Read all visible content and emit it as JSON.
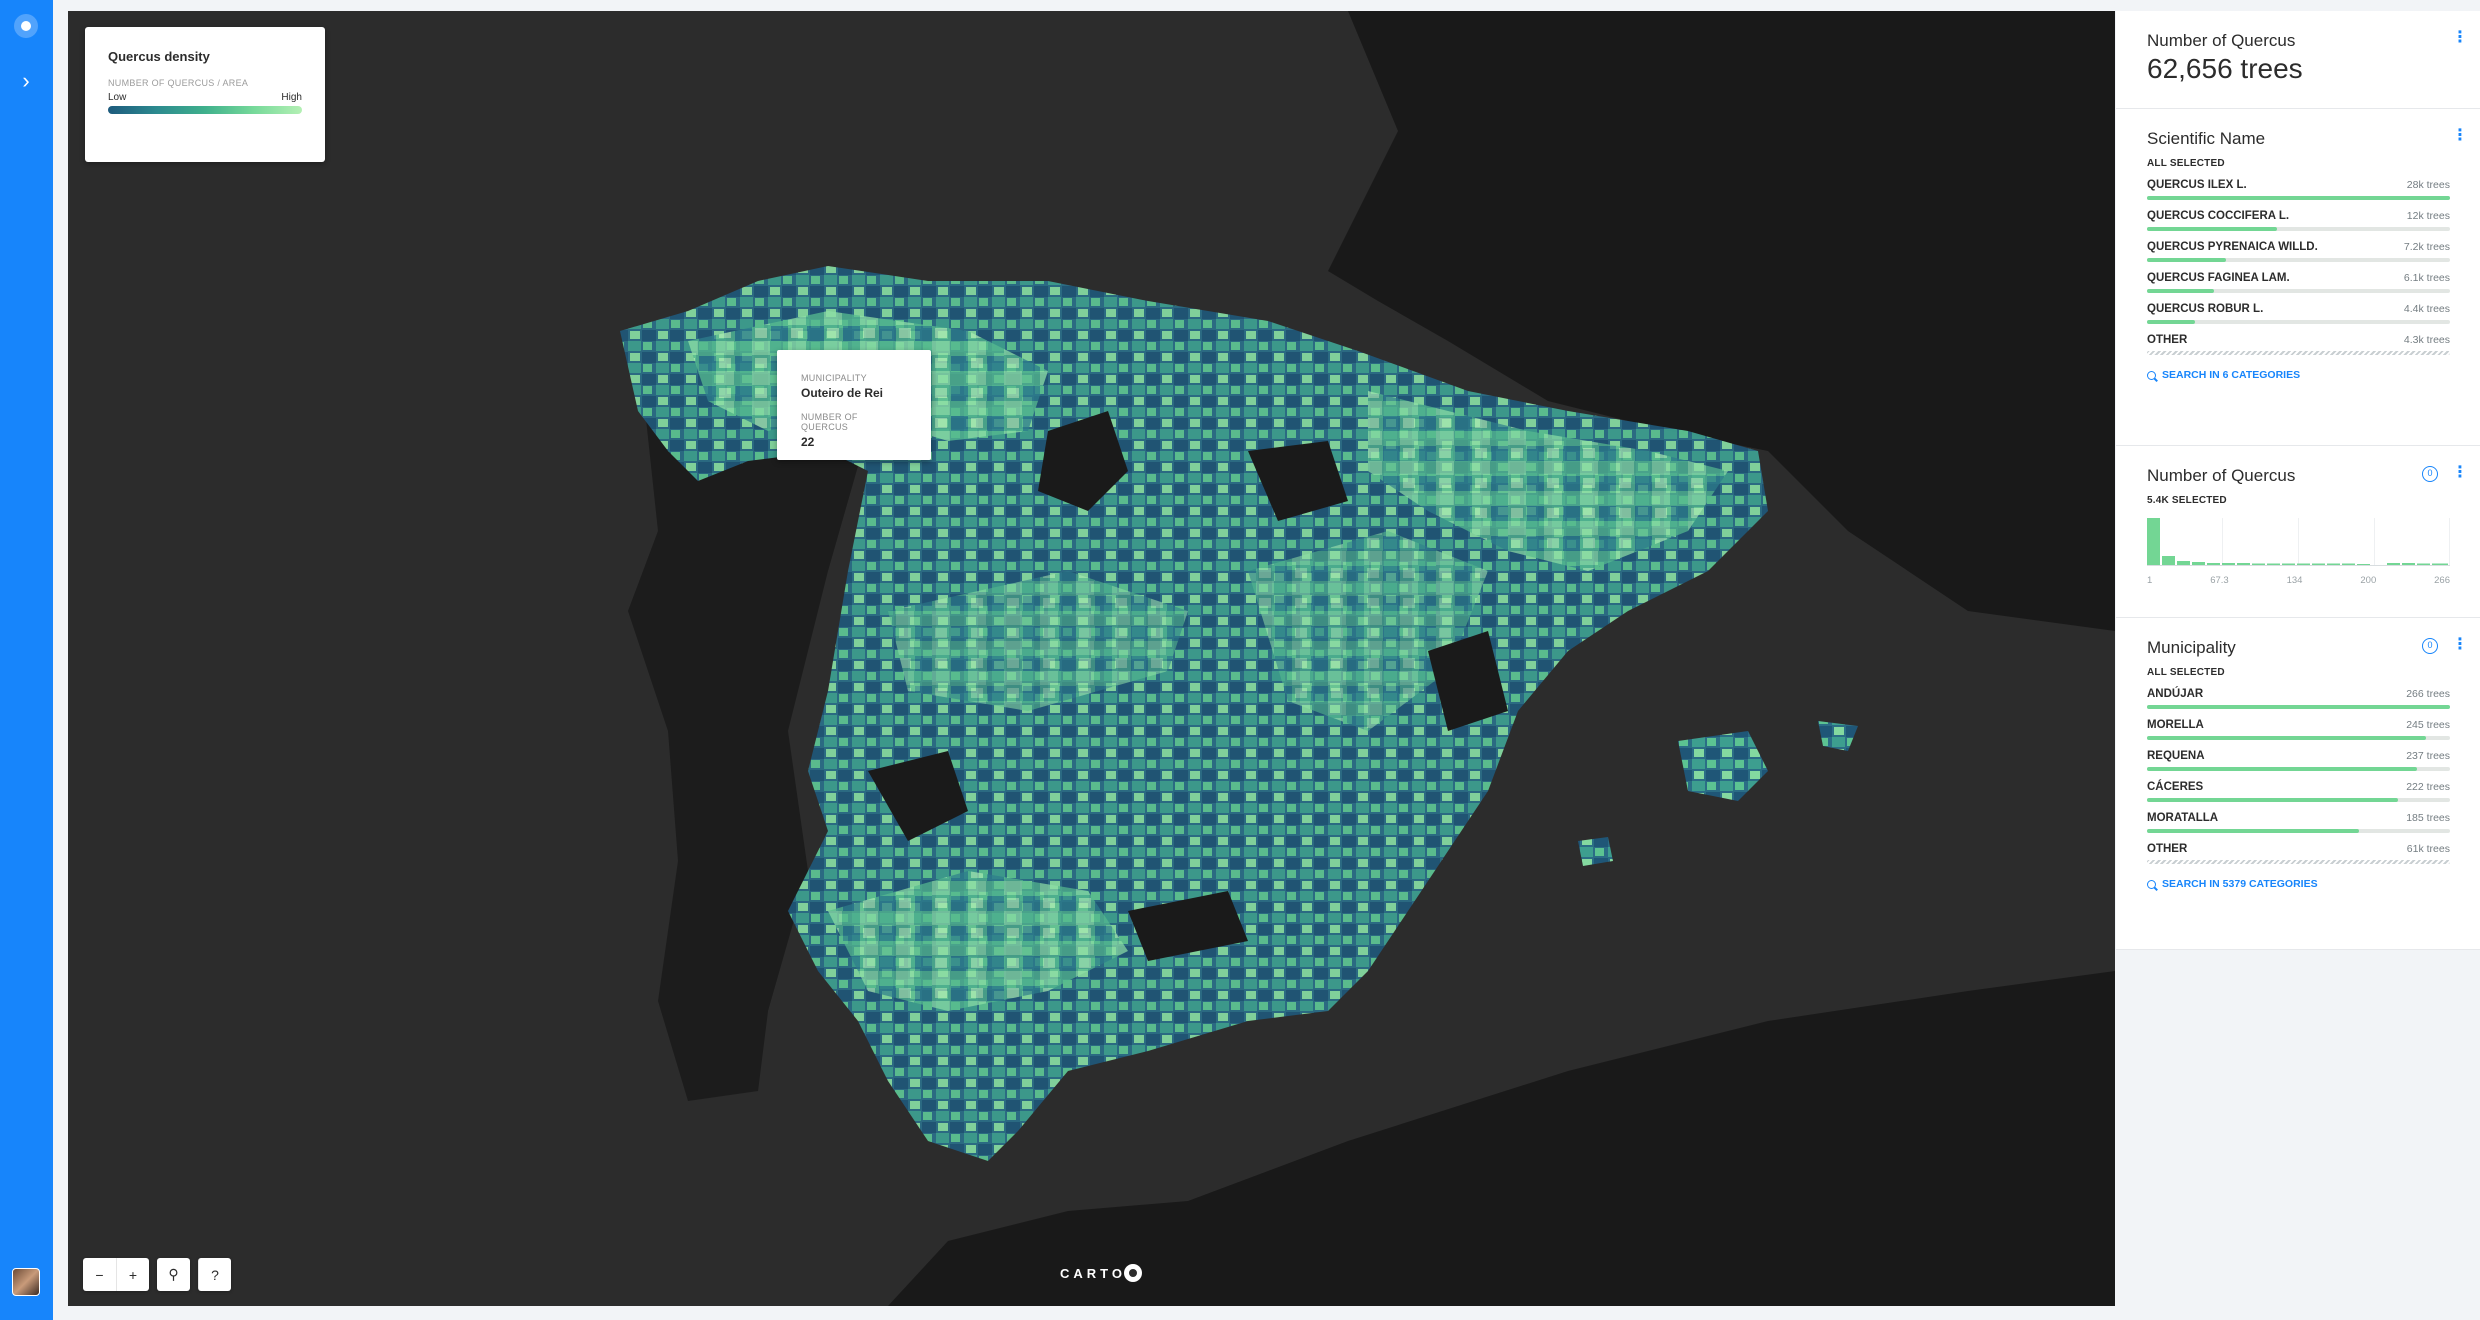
{
  "legend": {
    "title": "Quercus density",
    "subtitle": "NUMBER OF QUERCUS / AREA",
    "low_label": "Low",
    "high_label": "High"
  },
  "tooltip": {
    "field1_key": "MUNICIPALITY",
    "field1_value": "Outeiro de Rei",
    "field2_key": "NUMBER OF QUERCUS",
    "field2_value": "22"
  },
  "map_controls": {
    "zoom_out": "−",
    "zoom_in": "+",
    "search": "⚲",
    "help": "?"
  },
  "attribution": "CARTO",
  "widgets": {
    "count": {
      "title": "Number of Quercus",
      "value": "62,656 trees"
    },
    "scientific_name": {
      "title": "Scientific Name",
      "status": "ALL SELECTED",
      "categories": [
        {
          "name": "QUERCUS ILEX L.",
          "value": "28k trees",
          "fraction": 1.0
        },
        {
          "name": "QUERCUS COCCIFERA L.",
          "value": "12k trees",
          "fraction": 0.43
        },
        {
          "name": "QUERCUS PYRENAICA WILLD.",
          "value": "7.2k trees",
          "fraction": 0.26
        },
        {
          "name": "QUERCUS FAGINEA LAM.",
          "value": "6.1k trees",
          "fraction": 0.22
        },
        {
          "name": "QUERCUS ROBUR L.",
          "value": "4.4k trees",
          "fraction": 0.16
        },
        {
          "name": "OTHER",
          "value": "4.3k trees",
          "fraction": 0.15,
          "hatched": true
        }
      ],
      "search_label": "SEARCH IN 6 CATEGORIES"
    },
    "histogram": {
      "title": "Number of Quercus",
      "badge": "0",
      "status": "5.4K SELECTED",
      "ticks": [
        "1",
        "67.3",
        "134",
        "200",
        "266"
      ]
    },
    "municipality": {
      "title": "Municipality",
      "badge": "0",
      "status": "ALL SELECTED",
      "categories": [
        {
          "name": "ANDÚJAR",
          "value": "266 trees",
          "fraction": 1.0
        },
        {
          "name": "MORELLA",
          "value": "245 trees",
          "fraction": 0.92
        },
        {
          "name": "REQUENA",
          "value": "237 trees",
          "fraction": 0.89
        },
        {
          "name": "CÁCERES",
          "value": "222 trees",
          "fraction": 0.83
        },
        {
          "name": "MORATALLA",
          "value": "185 trees",
          "fraction": 0.7
        },
        {
          "name": "OTHER",
          "value": "61k trees",
          "fraction": 1.0,
          "hatched": true
        }
      ],
      "search_label": "SEARCH IN 5379 CATEGORIES"
    }
  },
  "colors": {
    "rail": "#1785fb",
    "map_bg": "#2c2c2c",
    "land": "#1a1a1a",
    "low": "#1d5a7d",
    "high": "#b4f0b4",
    "bar": "#73d694"
  }
}
